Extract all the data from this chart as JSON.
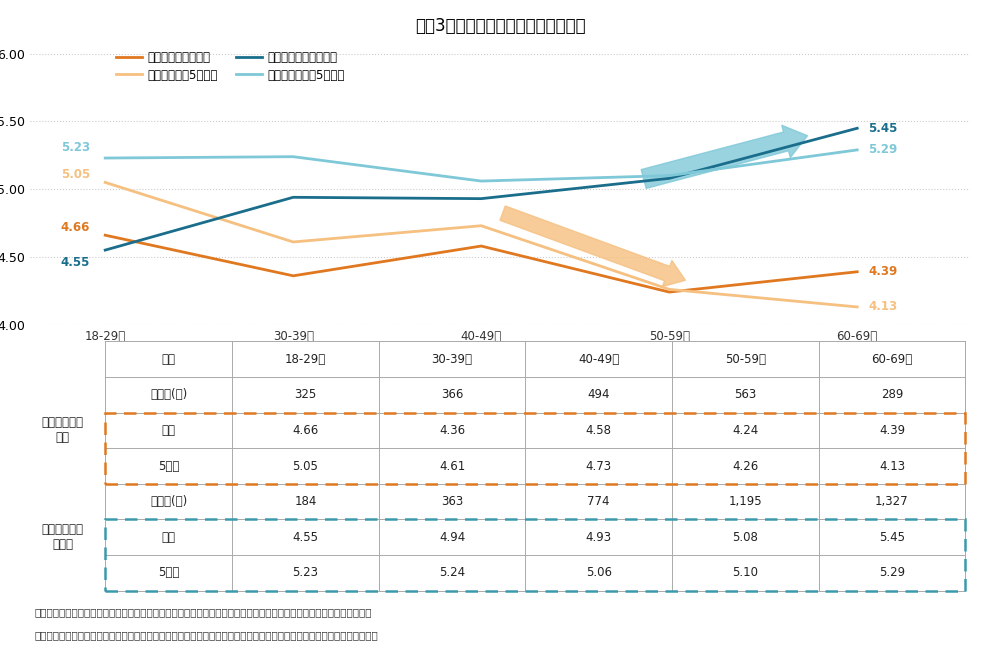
{
  "title": "図表3　住居形態と年代別生活満足度",
  "categories": [
    "18-29歳",
    "30-39歳",
    "40-49歳",
    "50-59歳",
    "60-69歳"
  ],
  "x_indices": [
    0,
    1,
    2,
    3,
    4
  ],
  "lines": {
    "rental_now": {
      "label": "ずっと賃貸（現在）",
      "values": [
        4.66,
        4.36,
        4.58,
        4.24,
        4.39
      ],
      "color": "#E07820",
      "linewidth": 2.0
    },
    "rental_5yr": {
      "label": "ずっと賃貸（5年後）",
      "values": [
        5.05,
        4.61,
        4.73,
        4.26,
        4.13
      ],
      "color": "#F5C080",
      "linewidth": 2.0
    },
    "owner_now": {
      "label": "ずっと持ち家（現在）",
      "values": [
        4.55,
        4.94,
        4.93,
        5.08,
        5.45
      ],
      "color": "#1A6E8C",
      "linewidth": 2.0
    },
    "owner_5yr": {
      "label": "ずっと持ち家（5年後）",
      "values": [
        5.23,
        5.24,
        5.06,
        5.1,
        5.29
      ],
      "color": "#7FC8D8",
      "linewidth": 2.0
    }
  },
  "line_order": [
    "rental_now",
    "rental_5yr",
    "owner_now",
    "owner_5yr"
  ],
  "ylim": [
    4.0,
    6.1
  ],
  "yticks": [
    4.0,
    4.5,
    5.0,
    5.5,
    6.0
  ],
  "ytick_labels": [
    "4.00",
    "4.50",
    "5.00",
    "5.50",
    "6.00"
  ],
  "label_offsets": {
    "rental_now": {
      "first": [
        -0.08,
        0.06
      ],
      "last": [
        0.06,
        0.0
      ]
    },
    "rental_5yr": {
      "first": [
        -0.08,
        0.06
      ],
      "last": [
        0.06,
        0.0
      ]
    },
    "owner_now": {
      "first": [
        -0.08,
        -0.09
      ],
      "last": [
        0.06,
        0.0
      ]
    },
    "owner_5yr": {
      "first": [
        -0.08,
        0.08
      ],
      "last": [
        0.06,
        0.0
      ]
    }
  },
  "table": {
    "col_headers": [
      "18-29歳",
      "30-39歳",
      "40-49歳",
      "50-59歳",
      "60-69歳"
    ],
    "rental_respondents": [
      "325",
      "366",
      "494",
      "563",
      "289"
    ],
    "rental_now": [
      "4.66",
      "4.36",
      "4.58",
      "4.24",
      "4.39"
    ],
    "rental_5yr": [
      "5.05",
      "4.61",
      "4.73",
      "4.26",
      "4.13"
    ],
    "owner_respondents": [
      "184",
      "363",
      "774",
      "1,195",
      "1,327"
    ],
    "owner_now": [
      "4.55",
      "4.94",
      "4.93",
      "5.08",
      "5.45"
    ],
    "owner_5yr": [
      "5.23",
      "5.24",
      "5.06",
      "5.10",
      "5.29"
    ]
  },
  "footnotes": [
    "＊今後もずっと賃貸　：現在の住まいが「賃貸」かつ、過去３年で住み替えしておらず、今後３年も住み替え予定はない",
    "＊今後もずっと持ち家：現在の住まいが「持ち家」かつ、過去３年で住み替えしておらず、今後３年も住み替え予定はない"
  ],
  "bg_color": "#FFFFFF",
  "grid_color": "#CCCCCC",
  "table_line_color": "#AAAAAA",
  "rental_box_color": "#E07820",
  "owner_box_color": "#3A9AAC",
  "arrow_orange_color": "#F5C080",
  "arrow_teal_color": "#7FC8D8"
}
